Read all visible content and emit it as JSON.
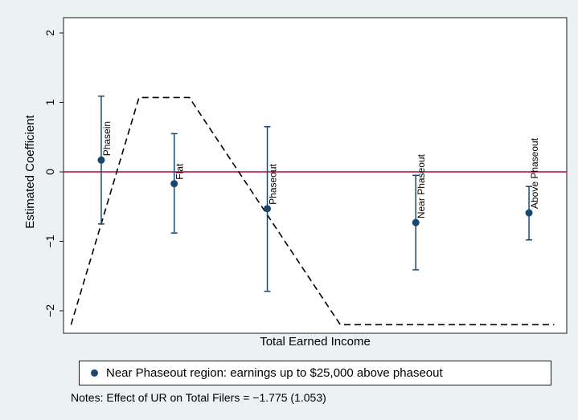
{
  "colors": {
    "figure_background": "#eaf2f3",
    "plot_background": "#ffffff",
    "marker": "#1a476f",
    "errorbar": "#1a476f",
    "zero_line": "#c10534",
    "dashed_line": "#000000"
  },
  "chart_data": {
    "type": "scatter",
    "title": "",
    "xlabel": "Total Earned Income",
    "ylabel": "Estimated Coefficient",
    "ylim": [
      -2.35,
      2.2
    ],
    "yticks": [
      -2,
      -1,
      0,
      1,
      2
    ],
    "ytick_labels": [
      "−2",
      "−1",
      "0",
      "1",
      "2"
    ],
    "x_axis_ticks_shown": false,
    "xlim": [
      0,
      100
    ],
    "grid": false,
    "reference_line_y": 0,
    "points": [
      {
        "label": "Phasein",
        "x": 7.5,
        "y": 0.17,
        "ci": [
          -0.75,
          1.09
        ]
      },
      {
        "label": "Flat",
        "x": 22.0,
        "y": -0.17,
        "ci": [
          -0.88,
          0.55
        ]
      },
      {
        "label": "Phaseout",
        "x": 40.5,
        "y": -0.53,
        "ci": [
          -1.72,
          0.65
        ]
      },
      {
        "label": "Near Phaseout",
        "x": 70.0,
        "y": -0.73,
        "ci": [
          -1.41,
          -0.05
        ]
      },
      {
        "label": "Above Phaseout",
        "x": 92.5,
        "y": -0.59,
        "ci": [
          -0.98,
          -0.21
        ]
      }
    ],
    "schedule_line": {
      "style": "dashed",
      "x": [
        1.5,
        15.0,
        25.0,
        55.0,
        97.5
      ],
      "y": [
        -2.2,
        1.07,
        1.07,
        -2.2,
        -2.2
      ]
    },
    "legend": {
      "placement": "bottom",
      "entries": [
        "Near Phaseout region: earnings up to $25,000 above phaseout"
      ]
    },
    "notes": "Notes: Effect of UR on Total Filers = −1.775 (1.053)"
  }
}
